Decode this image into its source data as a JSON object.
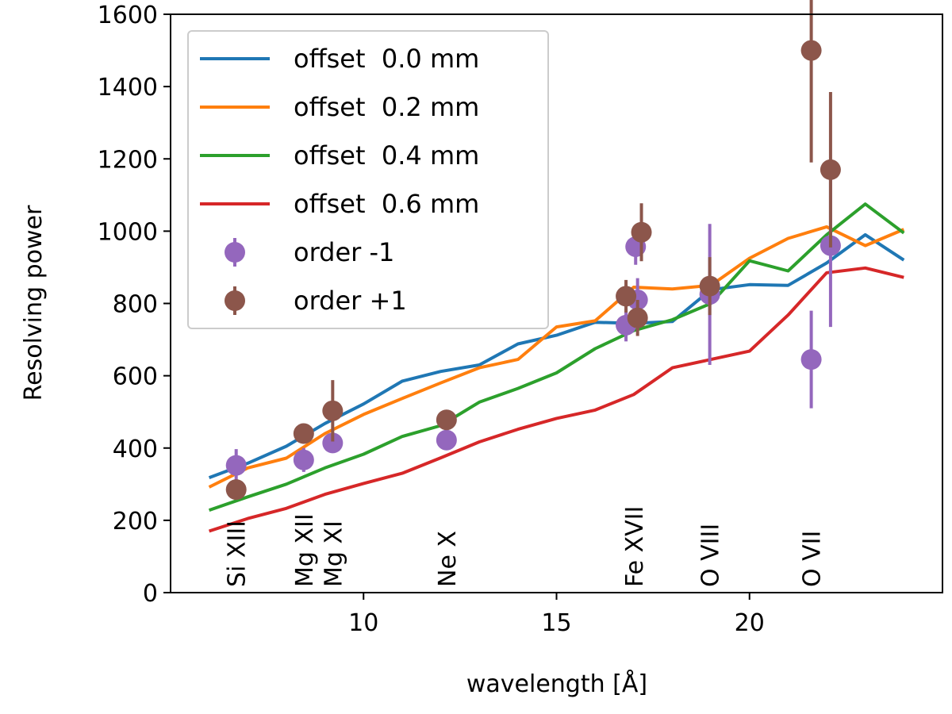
{
  "chart_data": {
    "type": "line",
    "title": "",
    "xlabel": "wavelength [Å]",
    "ylabel": "Resolving power",
    "xlim": [
      5.0,
      25.0
    ],
    "ylim": [
      0,
      1600
    ],
    "xticks": [
      10,
      15,
      20
    ],
    "yticks": [
      0,
      200,
      400,
      600,
      800,
      1000,
      1200,
      1400,
      1600
    ],
    "grid": false,
    "legend_placement": "upper-left",
    "line_series": [
      {
        "name": "offset  0.0 mm",
        "color": "#1f77b4",
        "x": [
          6,
          7,
          8,
          9,
          10,
          11,
          12,
          13,
          14,
          15,
          16,
          17,
          18,
          19,
          20,
          21,
          22,
          23,
          24
        ],
        "y": [
          318,
          358,
          405,
          468,
          522,
          585,
          612,
          630,
          688,
          712,
          748,
          745,
          750,
          838,
          852,
          850,
          912,
          990,
          920
        ]
      },
      {
        "name": "offset  0.2 mm",
        "color": "#ff7f0e",
        "x": [
          6,
          7,
          8,
          9,
          10,
          11,
          12,
          13,
          14,
          15,
          16,
          17,
          18,
          19,
          20,
          21,
          22,
          23,
          24
        ],
        "y": [
          292,
          345,
          372,
          440,
          493,
          537,
          580,
          622,
          645,
          735,
          752,
          845,
          840,
          850,
          925,
          980,
          1012,
          960,
          1005
        ]
      },
      {
        "name": "offset  0.4 mm",
        "color": "#2ca02c",
        "x": [
          6,
          7,
          8,
          9,
          10,
          11,
          12,
          13,
          14,
          15,
          16,
          17,
          18,
          19,
          20,
          21,
          22,
          23,
          24
        ],
        "y": [
          228,
          265,
          300,
          345,
          383,
          432,
          462,
          527,
          565,
          608,
          675,
          725,
          755,
          800,
          918,
          890,
          990,
          1075,
          995
        ]
      },
      {
        "name": "offset  0.6 mm",
        "color": "#d62728",
        "x": [
          6,
          7,
          8,
          9,
          10,
          11,
          12,
          13,
          14,
          15,
          16,
          17,
          18,
          19,
          20,
          21,
          22,
          23,
          24
        ],
        "y": [
          170,
          205,
          233,
          272,
          302,
          330,
          373,
          417,
          452,
          482,
          505,
          548,
          622,
          645,
          668,
          768,
          885,
          898,
          872
        ]
      }
    ],
    "point_series": [
      {
        "name": "order -1",
        "color": "#9467bd",
        "points": [
          {
            "x": 6.7,
            "y": 352,
            "err": 45
          },
          {
            "x": 8.45,
            "y": 367,
            "err": 33
          },
          {
            "x": 9.2,
            "y": 414,
            "err": 20
          },
          {
            "x": 12.15,
            "y": 422,
            "err": 15
          },
          {
            "x": 16.8,
            "y": 740,
            "err": 45
          },
          {
            "x": 17.05,
            "y": 957,
            "err": 50
          },
          {
            "x": 17.1,
            "y": 810,
            "err": 60
          },
          {
            "x": 18.97,
            "y": 825,
            "err": 195
          },
          {
            "x": 21.6,
            "y": 645,
            "err": 135
          },
          {
            "x": 22.1,
            "y": 960,
            "err": 225
          }
        ]
      },
      {
        "name": "order +1",
        "color": "#8c564b",
        "points": [
          {
            "x": 6.7,
            "y": 285,
            "err": 25
          },
          {
            "x": 8.45,
            "y": 440,
            "err": 25
          },
          {
            "x": 9.2,
            "y": 503,
            "err": 85
          },
          {
            "x": 12.15,
            "y": 478,
            "err": 20
          },
          {
            "x": 16.8,
            "y": 820,
            "err": 45
          },
          {
            "x": 17.1,
            "y": 760,
            "err": 50
          },
          {
            "x": 17.2,
            "y": 997,
            "err": 80
          },
          {
            "x": 18.97,
            "y": 848,
            "err": 80
          },
          {
            "x": 21.6,
            "y": 1500,
            "err": 310
          },
          {
            "x": 22.1,
            "y": 1170,
            "err": 215
          }
        ]
      }
    ],
    "annotations": [
      {
        "text": "Si XIII",
        "x": 6.7
      },
      {
        "text": "Mg XII",
        "x": 8.45
      },
      {
        "text": "Mg XI",
        "x": 9.2
      },
      {
        "text": "Ne X",
        "x": 12.15
      },
      {
        "text": "Fe XVII",
        "x": 17.0
      },
      {
        "text": "O VIII",
        "x": 18.97
      },
      {
        "text": "O VII",
        "x": 21.6
      }
    ]
  }
}
